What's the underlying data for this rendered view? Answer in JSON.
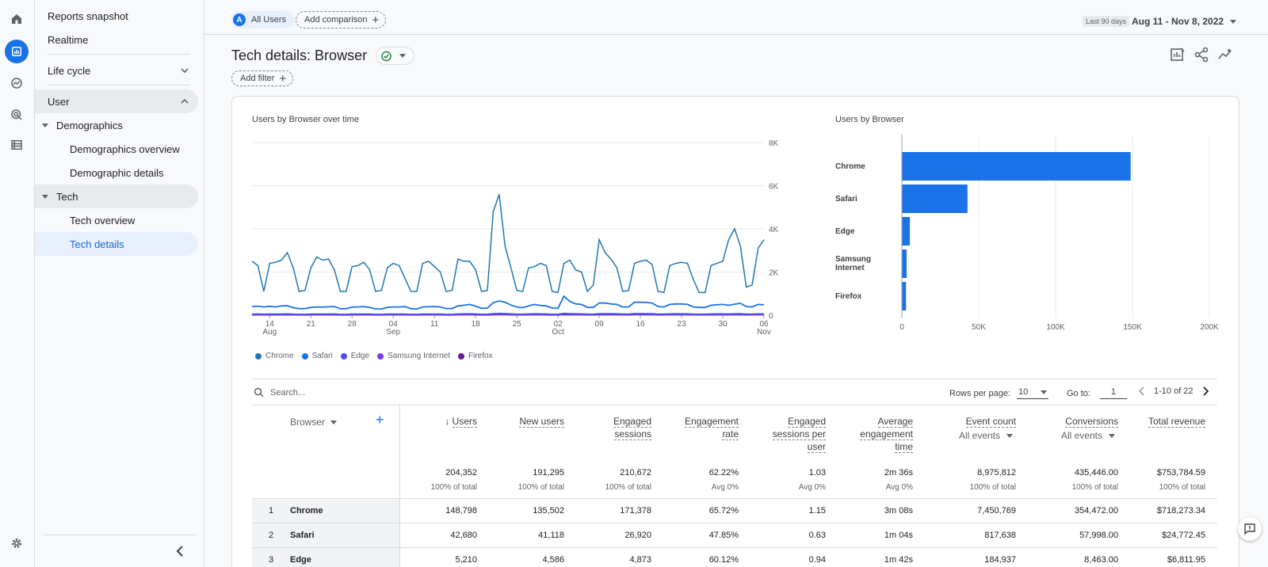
{
  "sidebar": {
    "items": [
      {
        "label": "Reports snapshot"
      },
      {
        "label": "Realtime"
      },
      {
        "label": "Life cycle"
      },
      {
        "label": "User"
      },
      {
        "label": "Demographics"
      },
      {
        "label": "Demographics overview"
      },
      {
        "label": "Demographic details"
      },
      {
        "label": "Tech"
      },
      {
        "label": "Tech overview"
      },
      {
        "label": "Tech details"
      }
    ]
  },
  "topbar": {
    "segment_initial": "A",
    "segment_label": "All Users",
    "add_comparison": "Add comparison",
    "date_sub": "Last 90 days",
    "date_range": "Aug 11 - Nov 8, 2022"
  },
  "header": {
    "title": "Tech details: Browser",
    "add_filter": "Add filter"
  },
  "colors": {
    "Chrome": "#1f77b4",
    "Safari": "#1a73e8",
    "Edge": "#4a4de8",
    "Samsung Internet": "#7c3aed",
    "Firefox": "#6a1b9a",
    "bar": "#1a73e8"
  },
  "line_chart": {
    "title": "Users by Browser over time",
    "y_ticks": [
      "8K",
      "6K",
      "4K",
      "2K",
      "0"
    ],
    "x_ticks": [
      {
        "day": "14",
        "month": "Aug"
      },
      {
        "day": "21",
        "month": ""
      },
      {
        "day": "28",
        "month": ""
      },
      {
        "day": "04",
        "month": "Sep"
      },
      {
        "day": "11",
        "month": ""
      },
      {
        "day": "18",
        "month": ""
      },
      {
        "day": "25",
        "month": ""
      },
      {
        "day": "02",
        "month": "Oct"
      },
      {
        "day": "09",
        "month": ""
      },
      {
        "day": "16",
        "month": ""
      },
      {
        "day": "23",
        "month": ""
      },
      {
        "day": "30",
        "month": ""
      },
      {
        "day": "06",
        "month": "Nov"
      }
    ],
    "legend": [
      "Chrome",
      "Safari",
      "Edge",
      "Samsung Internet",
      "Firefox"
    ]
  },
  "bar_chart": {
    "title": "Users by Browser",
    "x_ticks": [
      "0",
      "50K",
      "100K",
      "150K",
      "200K"
    ],
    "labels": [
      [
        "Chrome"
      ],
      [
        "Safari"
      ],
      [
        "Edge"
      ],
      [
        "Samsung",
        "Internet"
      ],
      [
        "Firefox"
      ]
    ]
  },
  "chart_data": [
    {
      "type": "line",
      "title": "Users by Browser over time",
      "ylim": [
        0,
        8000
      ],
      "x_range": [
        "2022-08-11",
        "2022-11-08"
      ],
      "series": [
        {
          "name": "Chrome",
          "values": [
            2500,
            2300,
            1100,
            2400,
            2450,
            2550,
            2900,
            2200,
            1100,
            1150,
            2200,
            2700,
            2550,
            2600,
            2100,
            1100,
            1100,
            2250,
            2300,
            2450,
            2100,
            1100,
            1150,
            2200,
            2400,
            2300,
            1700,
            1100,
            1100,
            2400,
            2500,
            2250,
            2000,
            1100,
            1150,
            2600,
            2500,
            2500,
            2100,
            1100,
            1150,
            4800,
            5600,
            3200,
            2200,
            1150,
            1100,
            2200,
            2250,
            2400,
            2300,
            1100,
            1050,
            2400,
            2550,
            2100,
            2000,
            1100,
            1400,
            3500,
            2900,
            2600,
            2200,
            1100,
            1150,
            2400,
            2500,
            2550,
            2350,
            1100,
            1050,
            2300,
            2400,
            2450,
            2400,
            1650,
            1050,
            1050,
            2300,
            2400,
            2500,
            3500,
            4000,
            3200,
            1300,
            1400,
            3100,
            3500
          ]
        },
        {
          "name": "Safari",
          "values": [
            400,
            420,
            380,
            410,
            380,
            430,
            440,
            350,
            300,
            310,
            360,
            380,
            370,
            390,
            400,
            300,
            300,
            370,
            380,
            400,
            360,
            290,
            290,
            360,
            380,
            380,
            400,
            300,
            290,
            380,
            390,
            400,
            380,
            310,
            310,
            430,
            460,
            500,
            420,
            320,
            330,
            580,
            660,
            600,
            470,
            380,
            350,
            430,
            500,
            450,
            430,
            330,
            320,
            880,
            640,
            520,
            500,
            360,
            360,
            560,
            560,
            520,
            500,
            380,
            380,
            600,
            600,
            590,
            560,
            400,
            380,
            500,
            520,
            520,
            500,
            380,
            360,
            360,
            460,
            480,
            500,
            460,
            510,
            550,
            400,
            380,
            500,
            480
          ]
        },
        {
          "name": "Edge",
          "values": [
            50,
            55,
            45,
            52,
            50,
            55,
            58,
            45,
            35,
            38,
            48,
            52,
            50,
            52,
            55,
            38,
            36,
            48,
            50,
            52,
            46,
            35,
            36,
            48,
            50,
            50,
            52,
            38,
            36,
            50,
            52,
            52,
            50,
            38,
            38,
            55,
            58,
            62,
            54,
            40,
            42,
            70,
            80,
            72,
            60,
            45,
            44,
            55,
            62,
            58,
            55,
            42,
            40,
            80,
            70,
            62,
            60,
            44,
            44,
            70,
            70,
            66,
            62,
            46,
            46,
            72,
            72,
            70,
            68,
            48,
            46,
            60,
            62,
            62,
            60,
            46,
            44,
            44,
            56,
            58,
            60,
            56,
            62,
            66,
            48,
            46,
            60,
            58
          ]
        },
        {
          "name": "Samsung Internet",
          "values": [
            25,
            28,
            22,
            26,
            25,
            28,
            30,
            22,
            18,
            19,
            24,
            26,
            25,
            26,
            28,
            19,
            18,
            24,
            25,
            26,
            23,
            18,
            18,
            24,
            25,
            25,
            26,
            19,
            18,
            25,
            26,
            26,
            25,
            19,
            19,
            28,
            29,
            31,
            27,
            20,
            21,
            35,
            40,
            36,
            30,
            22,
            22,
            28,
            31,
            29,
            28,
            21,
            20,
            40,
            35,
            31,
            30,
            22,
            22,
            35,
            35,
            33,
            31,
            23,
            23,
            36,
            36,
            35,
            34,
            24,
            23,
            30,
            31,
            31,
            30,
            23,
            22,
            22,
            28,
            29,
            30,
            28,
            31,
            33,
            24,
            23,
            30,
            29
          ]
        },
        {
          "name": "Firefox",
          "values": [
            15,
            16,
            13,
            15,
            15,
            16,
            17,
            13,
            11,
            11,
            14,
            15,
            15,
            15,
            16,
            11,
            11,
            14,
            15,
            15,
            14,
            11,
            11,
            14,
            15,
            15,
            15,
            11,
            11,
            15,
            15,
            15,
            15,
            11,
            11,
            16,
            17,
            18,
            16,
            12,
            12,
            20,
            23,
            21,
            18,
            13,
            13,
            16,
            18,
            17,
            16,
            12,
            12,
            23,
            20,
            18,
            18,
            13,
            13,
            20,
            20,
            19,
            18,
            14,
            14,
            21,
            21,
            20,
            20,
            14,
            14,
            18,
            18,
            18,
            18,
            14,
            13,
            13,
            16,
            17,
            18,
            16,
            18,
            19,
            14,
            14,
            18,
            17
          ]
        }
      ]
    },
    {
      "type": "bar",
      "title": "Users by Browser",
      "orientation": "horizontal",
      "categories": [
        "Chrome",
        "Safari",
        "Edge",
        "Samsung Internet",
        "Firefox"
      ],
      "values": [
        148798,
        42680,
        5210,
        3100,
        2700
      ],
      "xlim": [
        0,
        200000
      ]
    }
  ],
  "table": {
    "search_placeholder": "Search...",
    "rows_per_page_label": "Rows per page:",
    "rows_per_page": "10",
    "goto_label": "Go to:",
    "goto_value": "1",
    "range": "1-10 of 22",
    "dimension_header": "Browser",
    "columns": [
      {
        "lines": [
          "Users"
        ],
        "sorted": true,
        "total": "204,352",
        "pct": "100% of total"
      },
      {
        "lines": [
          "New users"
        ],
        "total": "191,295",
        "pct": "100% of total"
      },
      {
        "lines": [
          "Engaged",
          "sessions"
        ],
        "total": "210,672",
        "pct": "100% of total"
      },
      {
        "lines": [
          "Engagement",
          "rate"
        ],
        "total": "62.22%",
        "pct": "Avg 0%"
      },
      {
        "lines": [
          "Engaged",
          "sessions per",
          "user"
        ],
        "total": "1.03",
        "pct": "Avg 0%"
      },
      {
        "lines": [
          "Average",
          "engagement",
          "time"
        ],
        "total": "2m 36s",
        "pct": "Avg 0%"
      },
      {
        "lines": [
          "Event count"
        ],
        "sub": "All events",
        "total": "8,975,812",
        "pct": "100% of total"
      },
      {
        "lines": [
          "Conversions"
        ],
        "sub": "All events",
        "total": "435,446.00",
        "pct": "100% of total"
      },
      {
        "lines": [
          "Total revenue"
        ],
        "total": "$753,784.59",
        "pct": "100% of total"
      }
    ],
    "rows": [
      {
        "idx": "1",
        "name": "Chrome",
        "values": [
          "148,798",
          "135,502",
          "171,378",
          "65.72%",
          "1.15",
          "3m 08s",
          "7,450,769",
          "354,472.00",
          "$718,273.34"
        ]
      },
      {
        "idx": "2",
        "name": "Safari",
        "values": [
          "42,680",
          "41,118",
          "26,920",
          "47.85%",
          "0.63",
          "1m 04s",
          "817,638",
          "57,998.00",
          "$24,772.45"
        ]
      },
      {
        "idx": "3",
        "name": "Edge",
        "values": [
          "5,210",
          "4,586",
          "4,873",
          "60.12%",
          "0.94",
          "1m 42s",
          "184,937",
          "8,463.00",
          "$6,811.95"
        ]
      }
    ]
  }
}
